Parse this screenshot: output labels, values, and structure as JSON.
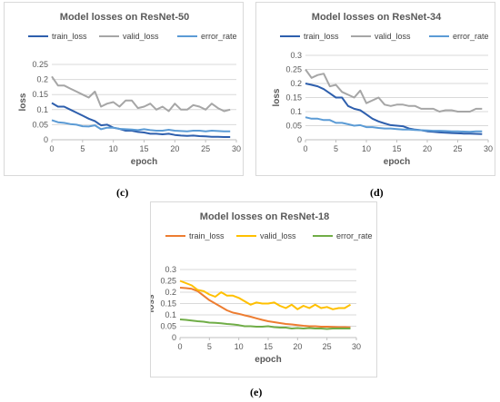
{
  "captions": [
    "(c)",
    "(d)",
    "(e)"
  ],
  "chart_data": [
    {
      "type": "line",
      "title": "Model losses on ResNet-50",
      "xlabel": "epoch",
      "ylabel": "loss",
      "xlim": [
        0,
        30
      ],
      "ylim": [
        0,
        0.25
      ],
      "xticks": [
        0,
        5,
        10,
        15,
        20,
        25,
        30
      ],
      "yticks": [
        0,
        0.05,
        0.1,
        0.15,
        0.2,
        0.25
      ],
      "ytick_labels": [
        "0",
        "0.05",
        "0.1",
        "0.15",
        "0.2",
        "0.25"
      ],
      "grid": true,
      "legend_position": "top",
      "x": [
        0,
        1,
        2,
        3,
        4,
        5,
        6,
        7,
        8,
        9,
        10,
        11,
        12,
        13,
        14,
        15,
        16,
        17,
        18,
        19,
        20,
        21,
        22,
        23,
        24,
        25,
        26,
        27,
        28,
        29
      ],
      "series": [
        {
          "name": "train_loss",
          "color": "#2e5fad",
          "values": [
            0.122,
            0.11,
            0.11,
            0.1,
            0.09,
            0.08,
            0.07,
            0.062,
            0.048,
            0.05,
            0.04,
            0.036,
            0.03,
            0.03,
            0.026,
            0.024,
            0.02,
            0.02,
            0.018,
            0.02,
            0.016,
            0.014,
            0.013,
            0.014,
            0.012,
            0.011,
            0.01,
            0.01,
            0.009,
            0.009
          ]
        },
        {
          "name": "valid_loss",
          "color": "#a6a6a6",
          "values": [
            0.21,
            0.18,
            0.18,
            0.17,
            0.16,
            0.15,
            0.14,
            0.16,
            0.11,
            0.12,
            0.125,
            0.11,
            0.13,
            0.13,
            0.105,
            0.11,
            0.12,
            0.1,
            0.11,
            0.095,
            0.12,
            0.1,
            0.1,
            0.115,
            0.11,
            0.1,
            0.12,
            0.105,
            0.095,
            0.1
          ]
        },
        {
          "name": "error_rate",
          "color": "#5b9bd5",
          "values": [
            0.065,
            0.058,
            0.056,
            0.052,
            0.05,
            0.045,
            0.044,
            0.048,
            0.035,
            0.04,
            0.04,
            0.036,
            0.035,
            0.034,
            0.032,
            0.035,
            0.032,
            0.03,
            0.03,
            0.033,
            0.03,
            0.029,
            0.028,
            0.03,
            0.03,
            0.028,
            0.03,
            0.029,
            0.028,
            0.028
          ]
        }
      ]
    },
    {
      "type": "line",
      "title": "Model losses on ResNet-34",
      "xlabel": "epoch",
      "ylabel": "loss",
      "xlim": [
        0,
        30
      ],
      "ylim": [
        0,
        0.3
      ],
      "xticks": [
        0,
        5,
        10,
        15,
        20,
        25,
        30
      ],
      "yticks": [
        0,
        0.05,
        0.1,
        0.15,
        0.2,
        0.25,
        0.3
      ],
      "ytick_labels": [
        "0",
        "0.05",
        "0.1",
        "0.15",
        "0.2",
        "0.25",
        "0.3"
      ],
      "grid": true,
      "legend_position": "top",
      "x": [
        0,
        1,
        2,
        3,
        4,
        5,
        6,
        7,
        8,
        9,
        10,
        11,
        12,
        13,
        14,
        15,
        16,
        17,
        18,
        19,
        20,
        21,
        22,
        23,
        24,
        25,
        26,
        27,
        28,
        29
      ],
      "series": [
        {
          "name": "train_loss",
          "color": "#2e5fad",
          "values": [
            0.2,
            0.195,
            0.19,
            0.18,
            0.165,
            0.15,
            0.15,
            0.12,
            0.11,
            0.105,
            0.09,
            0.075,
            0.065,
            0.058,
            0.052,
            0.05,
            0.048,
            0.04,
            0.036,
            0.034,
            0.03,
            0.028,
            0.026,
            0.025,
            0.024,
            0.023,
            0.022,
            0.022,
            0.021,
            0.02
          ]
        },
        {
          "name": "valid_loss",
          "color": "#a6a6a6",
          "values": [
            0.25,
            0.22,
            0.23,
            0.235,
            0.19,
            0.195,
            0.17,
            0.16,
            0.15,
            0.175,
            0.13,
            0.14,
            0.15,
            0.125,
            0.12,
            0.125,
            0.125,
            0.12,
            0.12,
            0.11,
            0.11,
            0.11,
            0.1,
            0.105,
            0.105,
            0.1,
            0.1,
            0.1,
            0.11,
            0.11
          ]
        },
        {
          "name": "error_rate",
          "color": "#5b9bd5",
          "values": [
            0.08,
            0.075,
            0.075,
            0.07,
            0.07,
            0.06,
            0.06,
            0.055,
            0.05,
            0.052,
            0.045,
            0.045,
            0.042,
            0.04,
            0.04,
            0.038,
            0.036,
            0.036,
            0.035,
            0.034,
            0.033,
            0.032,
            0.032,
            0.031,
            0.03,
            0.03,
            0.029,
            0.028,
            0.03,
            0.03
          ]
        }
      ]
    },
    {
      "type": "line",
      "title": "Model losses on ResNet-18",
      "xlabel": "epoch",
      "ylabel": "loss",
      "xlim": [
        0,
        30
      ],
      "ylim": [
        0,
        0.3
      ],
      "xticks": [
        0,
        5,
        10,
        15,
        20,
        25,
        30
      ],
      "yticks": [
        0,
        0.05,
        0.1,
        0.15,
        0.2,
        0.25,
        0.3
      ],
      "ytick_labels": [
        "0",
        "0.05",
        "0.1",
        "0.15",
        "0.2",
        "0.25",
        "0.3"
      ],
      "grid": true,
      "legend_position": "top",
      "x": [
        0,
        1,
        2,
        3,
        4,
        5,
        6,
        7,
        8,
        9,
        10,
        11,
        12,
        13,
        14,
        15,
        16,
        17,
        18,
        19,
        20,
        21,
        22,
        23,
        24,
        25,
        26,
        27,
        28,
        29
      ],
      "series": [
        {
          "name": "train_loss",
          "color": "#ed7d31",
          "values": [
            0.22,
            0.218,
            0.215,
            0.205,
            0.185,
            0.165,
            0.15,
            0.135,
            0.12,
            0.11,
            0.105,
            0.098,
            0.092,
            0.085,
            0.078,
            0.072,
            0.068,
            0.064,
            0.06,
            0.058,
            0.055,
            0.052,
            0.05,
            0.05,
            0.048,
            0.048,
            0.047,
            0.046,
            0.046,
            0.045
          ]
        },
        {
          "name": "valid_loss",
          "color": "#ffc000",
          "values": [
            0.25,
            0.24,
            0.23,
            0.21,
            0.205,
            0.19,
            0.18,
            0.2,
            0.185,
            0.185,
            0.175,
            0.16,
            0.145,
            0.155,
            0.15,
            0.15,
            0.155,
            0.14,
            0.13,
            0.145,
            0.125,
            0.14,
            0.13,
            0.145,
            0.13,
            0.135,
            0.125,
            0.13,
            0.13,
            0.145
          ]
        },
        {
          "name": "error_rate",
          "color": "#70ad47",
          "values": [
            0.08,
            0.078,
            0.075,
            0.072,
            0.07,
            0.066,
            0.065,
            0.063,
            0.06,
            0.058,
            0.055,
            0.05,
            0.05,
            0.048,
            0.048,
            0.05,
            0.046,
            0.044,
            0.044,
            0.04,
            0.042,
            0.04,
            0.042,
            0.04,
            0.04,
            0.038,
            0.04,
            0.04,
            0.04,
            0.04
          ]
        }
      ]
    }
  ]
}
